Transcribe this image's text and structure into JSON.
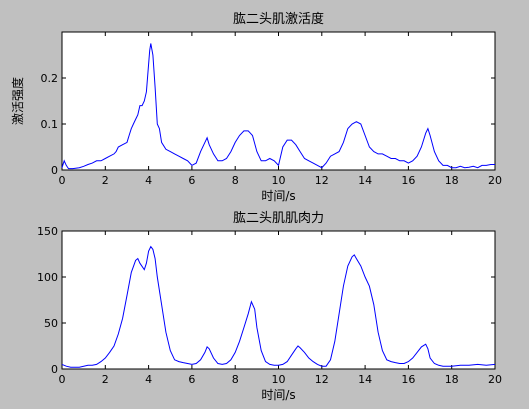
{
  "chart_data": [
    {
      "type": "line",
      "title": "肱二头肌激活度",
      "xlabel": "时间/s",
      "ylabel": "激活强度",
      "xlim": [
        0,
        20
      ],
      "ylim": [
        0,
        0.3
      ],
      "xticks": [
        0,
        2,
        4,
        6,
        8,
        10,
        12,
        14,
        16,
        18,
        20
      ],
      "xtick_labels": [
        "0",
        "2",
        "4",
        "6",
        "8",
        "10",
        "12",
        "14",
        "16",
        "18",
        "20"
      ],
      "yticks": [
        0,
        0.1,
        0.2
      ],
      "ytick_labels": [
        "0",
        "0.1",
        "0.2"
      ],
      "grid": false,
      "line_color": "#0000ff",
      "x": [
        0,
        0.1,
        0.2,
        0.3,
        0.5,
        0.8,
        1.0,
        1.2,
        1.4,
        1.6,
        1.8,
        2.0,
        2.2,
        2.4,
        2.5,
        2.6,
        2.8,
        3.0,
        3.1,
        3.2,
        3.3,
        3.4,
        3.5,
        3.6,
        3.7,
        3.8,
        3.9,
        4.0,
        4.05,
        4.1,
        4.2,
        4.3,
        4.4,
        4.5,
        4.6,
        4.8,
        5.0,
        5.2,
        5.4,
        5.6,
        5.8,
        6.0,
        6.2,
        6.4,
        6.6,
        6.7,
        6.8,
        7.0,
        7.2,
        7.4,
        7.6,
        7.8,
        8.0,
        8.2,
        8.4,
        8.6,
        8.7,
        8.8,
        9.0,
        9.2,
        9.4,
        9.6,
        9.8,
        10.0,
        10.2,
        10.4,
        10.6,
        10.8,
        11.0,
        11.2,
        11.4,
        11.6,
        11.8,
        12.0,
        12.2,
        12.4,
        12.6,
        12.8,
        13.0,
        13.2,
        13.4,
        13.6,
        13.8,
        14.0,
        14.2,
        14.4,
        14.6,
        14.8,
        15.0,
        15.2,
        15.4,
        15.6,
        15.8,
        16.0,
        16.2,
        16.4,
        16.6,
        16.8,
        16.9,
        17.0,
        17.2,
        17.4,
        17.6,
        17.8,
        18.0,
        18.2,
        18.4,
        18.6,
        18.8,
        19.0,
        19.2,
        19.4,
        19.6,
        19.8,
        20.0
      ],
      "y": [
        0.005,
        0.02,
        0.01,
        0.003,
        0.003,
        0.005,
        0.008,
        0.012,
        0.015,
        0.02,
        0.02,
        0.025,
        0.03,
        0.035,
        0.04,
        0.05,
        0.055,
        0.06,
        0.075,
        0.09,
        0.1,
        0.11,
        0.12,
        0.14,
        0.14,
        0.15,
        0.17,
        0.23,
        0.26,
        0.275,
        0.25,
        0.18,
        0.1,
        0.09,
        0.06,
        0.045,
        0.04,
        0.035,
        0.03,
        0.025,
        0.02,
        0.01,
        0.015,
        0.04,
        0.06,
        0.07,
        0.055,
        0.035,
        0.02,
        0.02,
        0.025,
        0.04,
        0.06,
        0.075,
        0.085,
        0.085,
        0.08,
        0.075,
        0.04,
        0.02,
        0.02,
        0.025,
        0.02,
        0.01,
        0.05,
        0.065,
        0.065,
        0.055,
        0.04,
        0.025,
        0.02,
        0.015,
        0.01,
        0.005,
        0.015,
        0.03,
        0.035,
        0.04,
        0.06,
        0.09,
        0.1,
        0.105,
        0.1,
        0.075,
        0.05,
        0.04,
        0.035,
        0.035,
        0.03,
        0.025,
        0.025,
        0.02,
        0.02,
        0.015,
        0.02,
        0.03,
        0.05,
        0.08,
        0.09,
        0.075,
        0.04,
        0.02,
        0.01,
        0.01,
        0.005,
        0.005,
        0.008,
        0.005,
        0.006,
        0.008,
        0.005,
        0.01,
        0.01,
        0.012,
        0.012
      ]
    },
    {
      "type": "line",
      "title": "肱二头肌肌肉力",
      "xlabel": "时间/s",
      "ylabel": "",
      "xlim": [
        0,
        20
      ],
      "ylim": [
        0,
        150
      ],
      "xticks": [
        0,
        2,
        4,
        6,
        8,
        10,
        12,
        14,
        16,
        18,
        20
      ],
      "xtick_labels": [
        "0",
        "2",
        "4",
        "6",
        "8",
        "10",
        "12",
        "14",
        "16",
        "18",
        "20"
      ],
      "yticks": [
        0,
        50,
        100,
        150
      ],
      "ytick_labels": [
        "0",
        "50",
        "100",
        "150"
      ],
      "grid": false,
      "line_color": "#0000ff",
      "x": [
        0,
        0.2,
        0.4,
        0.6,
        0.8,
        1.0,
        1.2,
        1.4,
        1.6,
        1.8,
        2.0,
        2.2,
        2.4,
        2.6,
        2.8,
        3.0,
        3.2,
        3.4,
        3.5,
        3.6,
        3.8,
        3.9,
        4.0,
        4.1,
        4.2,
        4.3,
        4.4,
        4.6,
        4.8,
        5.0,
        5.2,
        5.4,
        5.6,
        5.8,
        6.0,
        6.2,
        6.4,
        6.6,
        6.7,
        6.8,
        7.0,
        7.2,
        7.4,
        7.6,
        7.8,
        8.0,
        8.2,
        8.4,
        8.6,
        8.75,
        8.9,
        9.0,
        9.2,
        9.4,
        9.6,
        9.8,
        10.0,
        10.2,
        10.4,
        10.6,
        10.8,
        10.9,
        11.0,
        11.2,
        11.4,
        11.6,
        11.8,
        12.0,
        12.2,
        12.4,
        12.6,
        12.8,
        13.0,
        13.2,
        13.4,
        13.5,
        13.6,
        13.8,
        14.0,
        14.2,
        14.4,
        14.6,
        14.8,
        15.0,
        15.2,
        15.4,
        15.6,
        15.8,
        16.0,
        16.2,
        16.4,
        16.6,
        16.8,
        16.9,
        17.0,
        17.2,
        17.4,
        17.6,
        17.8,
        18.0,
        18.4,
        18.8,
        19.2,
        19.6,
        20.0
      ],
      "y": [
        5,
        3,
        2,
        2,
        2,
        3,
        4,
        4,
        5,
        8,
        12,
        18,
        25,
        38,
        55,
        80,
        105,
        118,
        120,
        115,
        108,
        115,
        128,
        133,
        130,
        120,
        100,
        70,
        40,
        20,
        10,
        8,
        7,
        6,
        5,
        6,
        10,
        18,
        24,
        22,
        12,
        6,
        5,
        6,
        10,
        18,
        30,
        45,
        60,
        73,
        65,
        45,
        20,
        8,
        5,
        4,
        4,
        5,
        8,
        15,
        22,
        25,
        23,
        18,
        12,
        8,
        5,
        3,
        3,
        10,
        30,
        60,
        90,
        112,
        122,
        124,
        120,
        112,
        100,
        90,
        70,
        40,
        20,
        10,
        8,
        7,
        6,
        6,
        8,
        12,
        18,
        24,
        27,
        22,
        12,
        6,
        4,
        3,
        3,
        3,
        4,
        4,
        5,
        4,
        5
      ]
    }
  ]
}
